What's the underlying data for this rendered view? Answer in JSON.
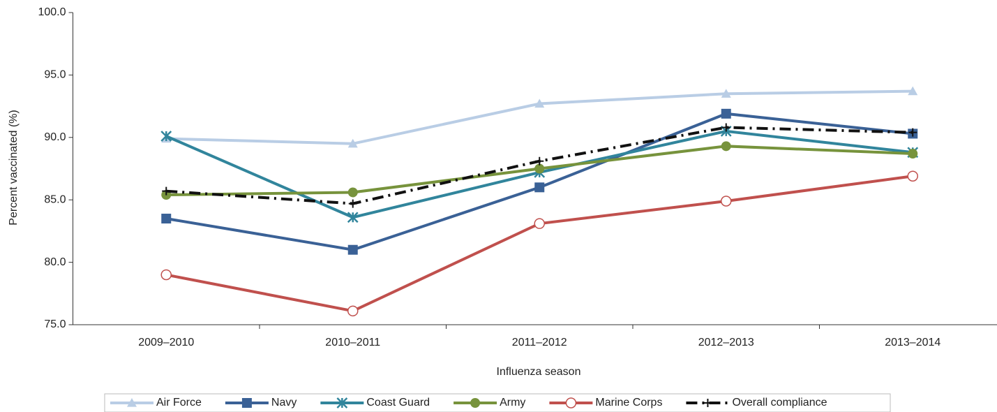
{
  "chart_data": {
    "type": "line",
    "x_label": "Influenza season",
    "y_label": "Percent vaccinated (%)",
    "categories": [
      "2009–2010",
      "2010–2011",
      "2011–2012",
      "2012–2013",
      "2013–2014"
    ],
    "ylim": [
      75,
      100
    ],
    "yticks": [
      {
        "value": 75,
        "label": "75.0"
      },
      {
        "value": 80,
        "label": "80.0"
      },
      {
        "value": 85,
        "label": "85.0"
      },
      {
        "value": 90,
        "label": "90.0"
      },
      {
        "value": 95,
        "label": "95.0"
      },
      {
        "value": 100,
        "label": "100.0"
      }
    ],
    "legend": "bottom",
    "series": [
      {
        "name": "Air Force",
        "color": "#b9cde5",
        "marker": "triangle",
        "values": [
          89.9,
          89.5,
          92.7,
          93.5,
          93.7
        ]
      },
      {
        "name": "Navy",
        "color": "#3a6196",
        "marker": "square",
        "values": [
          83.5,
          81.0,
          86.0,
          91.9,
          90.3
        ]
      },
      {
        "name": "Coast Guard",
        "color": "#31859c",
        "marker": "star",
        "values": [
          90.1,
          83.6,
          87.2,
          90.5,
          88.8
        ]
      },
      {
        "name": "Army",
        "color": "#77933c",
        "marker": "circle",
        "values": [
          85.4,
          85.6,
          87.5,
          89.3,
          88.7
        ]
      },
      {
        "name": "Marine Corps",
        "color": "#c0504d",
        "marker": "open-circle",
        "values": [
          79.0,
          76.1,
          83.1,
          84.9,
          86.9
        ]
      },
      {
        "name": "Overall compliance",
        "color": "#111111",
        "marker": "plus",
        "dash": true,
        "values": [
          85.7,
          84.7,
          88.1,
          90.8,
          90.4
        ]
      }
    ]
  }
}
